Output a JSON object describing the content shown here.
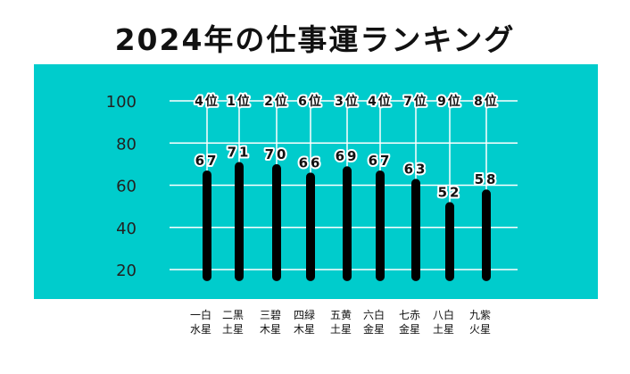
{
  "chart_data": {
    "type": "bar",
    "title": "2024年の仕事運ランキング",
    "categories": [
      [
        "一白",
        "水星"
      ],
      [
        "二黒",
        "土星"
      ],
      [
        "三碧",
        "木星"
      ],
      [
        "四緑",
        "木星"
      ],
      [
        "五黄",
        "土星"
      ],
      [
        "六白",
        "金星"
      ],
      [
        "七赤",
        "金星"
      ],
      [
        "八白",
        "土星"
      ],
      [
        "九紫",
        "火星"
      ]
    ],
    "values": [
      67,
      71,
      70,
      66,
      69,
      67,
      63,
      52,
      58
    ],
    "value_labels": [
      "67",
      "71",
      "70",
      "66",
      "69",
      "67",
      "63",
      "52",
      "58"
    ],
    "rank_labels": [
      "4位",
      "1位",
      "2位",
      "6位",
      "3位",
      "4位",
      "7位",
      "9位",
      "8位"
    ],
    "yticks": [
      "20",
      "40",
      "60",
      "80",
      "100"
    ],
    "ylim": [
      15,
      105
    ],
    "xlabel": "",
    "ylabel": "",
    "grid": true,
    "colors": {
      "panel": "#00CCCC",
      "bar": "#000000",
      "grid": "#ffffff"
    }
  }
}
